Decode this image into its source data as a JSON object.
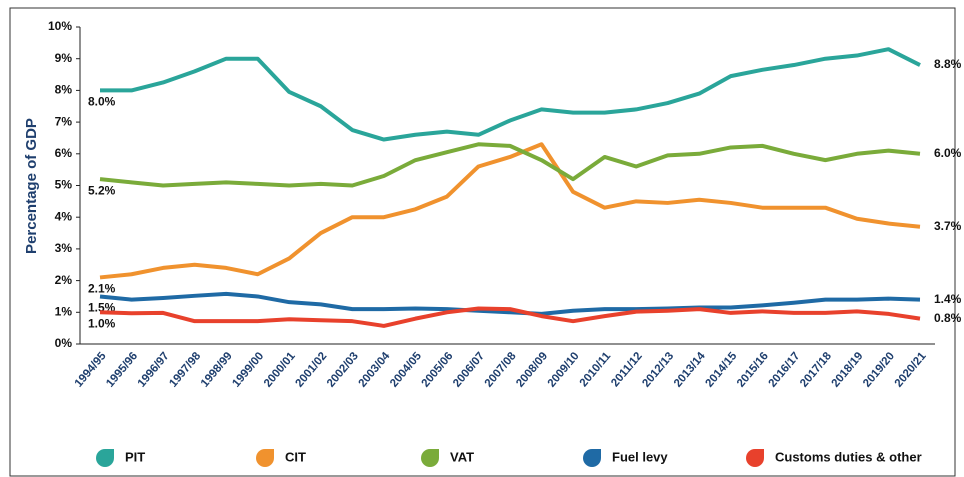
{
  "chart_data": {
    "type": "line",
    "y_label": "Percentage of GDP",
    "categories": [
      "1994/95",
      "1995/96",
      "1996/97",
      "1997/98",
      "1998/99",
      "1999/00",
      "2000/01",
      "2001/02",
      "2002/03",
      "2003/04",
      "2004/05",
      "2005/06",
      "2006/07",
      "2007/08",
      "2008/09",
      "2009/10",
      "2010/11",
      "2011/12",
      "2012/13",
      "2013/14",
      "2014/15",
      "2015/16",
      "2016/17",
      "2017/18",
      "2018/19",
      "2019/20",
      "2020/21"
    ],
    "ylim": [
      0,
      10
    ],
    "yticks": [
      {
        "value": 0,
        "label": "0%"
      },
      {
        "value": 1,
        "label": "1%"
      },
      {
        "value": 2,
        "label": "2%"
      },
      {
        "value": 3,
        "label": "3%"
      },
      {
        "value": 4,
        "label": "4%"
      },
      {
        "value": 5,
        "label": "5%"
      },
      {
        "value": 6,
        "label": "6%"
      },
      {
        "value": 7,
        "label": "7%"
      },
      {
        "value": 8,
        "label": "8%"
      },
      {
        "value": 9,
        "label": "9%"
      },
      {
        "value": 10,
        "label": "10%"
      }
    ],
    "grid": false,
    "legend": "bottom",
    "series": [
      {
        "name": "PIT",
        "color": "#2aa59a",
        "values": [
          8.0,
          8.0,
          8.25,
          8.6,
          9.0,
          9.0,
          7.95,
          7.5,
          6.75,
          6.45,
          6.6,
          6.7,
          6.6,
          7.05,
          7.4,
          7.3,
          7.3,
          7.4,
          7.6,
          7.9,
          8.45,
          8.65,
          8.8,
          9.0,
          9.1,
          9.3,
          8.8
        ],
        "value_labels": [
          "8.0%",
          null,
          null,
          null,
          null,
          null,
          null,
          null,
          null,
          null,
          null,
          null,
          null,
          null,
          null,
          null,
          null,
          null,
          null,
          null,
          null,
          null,
          null,
          null,
          null,
          null,
          "8.8%"
        ]
      },
      {
        "name": "CIT",
        "color": "#f0922e",
        "values": [
          2.1,
          2.2,
          2.4,
          2.5,
          2.4,
          2.2,
          2.7,
          3.5,
          4.0,
          4.0,
          4.25,
          4.65,
          5.6,
          5.9,
          6.3,
          4.8,
          4.3,
          4.5,
          4.45,
          4.55,
          4.45,
          4.3,
          4.3,
          4.3,
          3.95,
          3.8,
          3.7
        ],
        "value_labels": [
          "2.1%",
          null,
          null,
          null,
          null,
          null,
          null,
          null,
          null,
          null,
          null,
          null,
          null,
          null,
          null,
          null,
          null,
          null,
          null,
          null,
          null,
          null,
          null,
          null,
          null,
          null,
          "3.7%"
        ]
      },
      {
        "name": "VAT",
        "color": "#7aab3a",
        "values": [
          5.2,
          5.1,
          5.0,
          5.05,
          5.1,
          5.05,
          5.0,
          5.05,
          5.0,
          5.3,
          5.8,
          6.05,
          6.3,
          6.25,
          5.8,
          5.2,
          5.9,
          5.6,
          5.95,
          6.0,
          6.2,
          6.25,
          6.0,
          5.8,
          6.0,
          6.1,
          6.0
        ],
        "value_labels": [
          "5.2%",
          null,
          null,
          null,
          null,
          null,
          null,
          null,
          null,
          null,
          null,
          null,
          null,
          null,
          null,
          null,
          null,
          null,
          null,
          null,
          null,
          null,
          null,
          null,
          null,
          null,
          "6.0%"
        ]
      },
      {
        "name": "Fuel levy",
        "color": "#1f6aa5",
        "values": [
          1.5,
          1.4,
          1.45,
          1.52,
          1.58,
          1.5,
          1.32,
          1.25,
          1.1,
          1.1,
          1.12,
          1.1,
          1.05,
          1.0,
          0.95,
          1.05,
          1.1,
          1.1,
          1.12,
          1.15,
          1.15,
          1.22,
          1.3,
          1.4,
          1.4,
          1.43,
          1.4
        ],
        "value_labels": [
          "1.5%",
          null,
          null,
          null,
          null,
          null,
          null,
          null,
          null,
          null,
          null,
          null,
          null,
          null,
          null,
          null,
          null,
          null,
          null,
          null,
          null,
          null,
          null,
          null,
          null,
          null,
          "1.4%"
        ]
      },
      {
        "name": "Customs duties & other",
        "color": "#e8412c",
        "values": [
          1.0,
          0.97,
          0.98,
          0.72,
          0.72,
          0.72,
          0.78,
          0.75,
          0.72,
          0.57,
          0.8,
          1.0,
          1.12,
          1.1,
          0.88,
          0.72,
          0.88,
          1.02,
          1.05,
          1.1,
          0.98,
          1.03,
          0.98,
          0.98,
          1.03,
          0.95,
          0.8
        ],
        "value_labels": [
          "1.0%",
          null,
          null,
          null,
          null,
          null,
          null,
          null,
          null,
          null,
          null,
          null,
          null,
          null,
          null,
          null,
          null,
          null,
          null,
          null,
          null,
          null,
          null,
          null,
          null,
          null,
          "0.8%"
        ]
      }
    ]
  }
}
